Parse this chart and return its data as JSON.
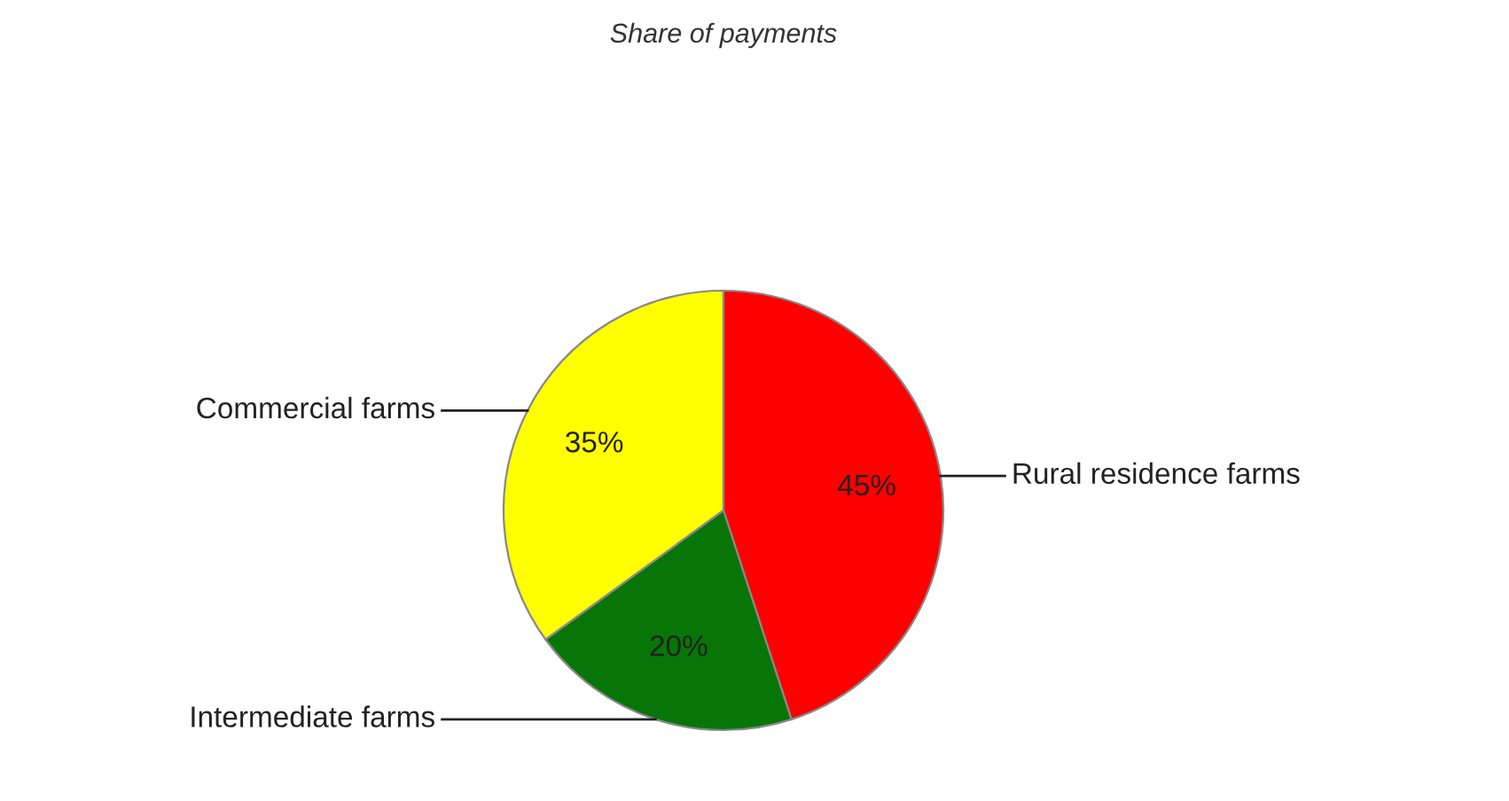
{
  "chart_data": {
    "type": "pie",
    "title": "Share of payments",
    "categories": [
      "Rural residence farms",
      "Intermediate farms",
      "Commercial farms"
    ],
    "values": [
      45,
      20,
      35
    ],
    "colors": [
      "#ff0000",
      "#087508",
      "#ffff00"
    ],
    "value_labels": [
      "45%",
      "20%",
      "35%"
    ],
    "legend": false
  }
}
